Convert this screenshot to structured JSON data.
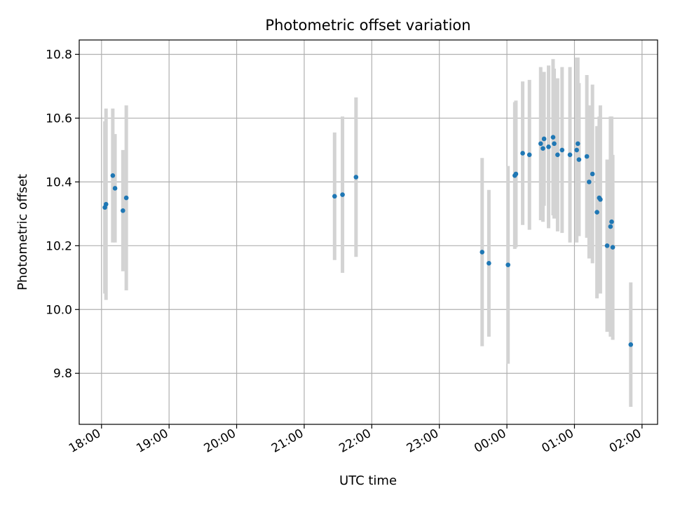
{
  "chart_data": {
    "type": "scatter",
    "title": "Photometric offset variation",
    "xlabel": "UTC time",
    "ylabel": "Photometric offset",
    "x_ticks": [
      "18:00",
      "19:00",
      "20:00",
      "21:00",
      "22:00",
      "23:00",
      "00:00",
      "01:00",
      "02:00"
    ],
    "y_ticks": [
      "9.8",
      "10.0",
      "10.2",
      "10.4",
      "10.6",
      "10.8"
    ],
    "xlim_hours": [
      17.67,
      26.23
    ],
    "ylim": [
      9.64,
      10.845
    ],
    "grid": true,
    "marker_color": "#1f77b4",
    "errorbar_color": "#d3d3d3",
    "points": [
      {
        "t": "18:03",
        "y": 10.32,
        "err": 0.27
      },
      {
        "t": "18:04",
        "y": 10.33,
        "err": 0.3
      },
      {
        "t": "18:10",
        "y": 10.42,
        "err": 0.21
      },
      {
        "t": "18:12",
        "y": 10.38,
        "err": 0.17
      },
      {
        "t": "18:19",
        "y": 10.31,
        "err": 0.19
      },
      {
        "t": "18:22",
        "y": 10.35,
        "err": 0.29
      },
      {
        "t": "21:27",
        "y": 10.355,
        "err": 0.2
      },
      {
        "t": "21:34",
        "y": 10.36,
        "err": 0.245
      },
      {
        "t": "21:46",
        "y": 10.415,
        "err": 0.25
      },
      {
        "t": "23:38",
        "y": 10.18,
        "err": 0.295
      },
      {
        "t": "23:44",
        "y": 10.145,
        "err": 0.23
      },
      {
        "t": "00:01",
        "y": 10.14,
        "err": 0.31
      },
      {
        "t": "00:07",
        "y": 10.42,
        "err": 0.23
      },
      {
        "t": "00:08",
        "y": 10.425,
        "err": 0.23
      },
      {
        "t": "00:14",
        "y": 10.49,
        "err": 0.225
      },
      {
        "t": "00:20",
        "y": 10.485,
        "err": 0.235
      },
      {
        "t": "00:30",
        "y": 10.52,
        "err": 0.24
      },
      {
        "t": "00:32",
        "y": 10.505,
        "err": 0.23
      },
      {
        "t": "00:33",
        "y": 10.535,
        "err": 0.21
      },
      {
        "t": "00:37",
        "y": 10.51,
        "err": 0.255
      },
      {
        "t": "00:41",
        "y": 10.54,
        "err": 0.245
      },
      {
        "t": "00:42",
        "y": 10.52,
        "err": 0.235
      },
      {
        "t": "00:45",
        "y": 10.485,
        "err": 0.24
      },
      {
        "t": "00:49",
        "y": 10.5,
        "err": 0.26
      },
      {
        "t": "00:56",
        "y": 10.485,
        "err": 0.275
      },
      {
        "t": "01:02",
        "y": 10.5,
        "err": 0.29
      },
      {
        "t": "01:03",
        "y": 10.52,
        "err": 0.27
      },
      {
        "t": "01:04",
        "y": 10.47,
        "err": 0.24
      },
      {
        "t": "01:11",
        "y": 10.48,
        "err": 0.255
      },
      {
        "t": "01:13",
        "y": 10.4,
        "err": 0.24
      },
      {
        "t": "01:16",
        "y": 10.425,
        "err": 0.28
      },
      {
        "t": "01:20",
        "y": 10.305,
        "err": 0.27
      },
      {
        "t": "01:22",
        "y": 10.35,
        "err": 0.255
      },
      {
        "t": "01:23",
        "y": 10.345,
        "err": 0.295
      },
      {
        "t": "01:29",
        "y": 10.2,
        "err": 0.27
      },
      {
        "t": "01:32",
        "y": 10.26,
        "err": 0.345
      },
      {
        "t": "01:33",
        "y": 10.275,
        "err": 0.33
      },
      {
        "t": "01:34",
        "y": 10.195,
        "err": 0.29
      },
      {
        "t": "01:50",
        "y": 9.89,
        "err": 0.195
      }
    ]
  }
}
